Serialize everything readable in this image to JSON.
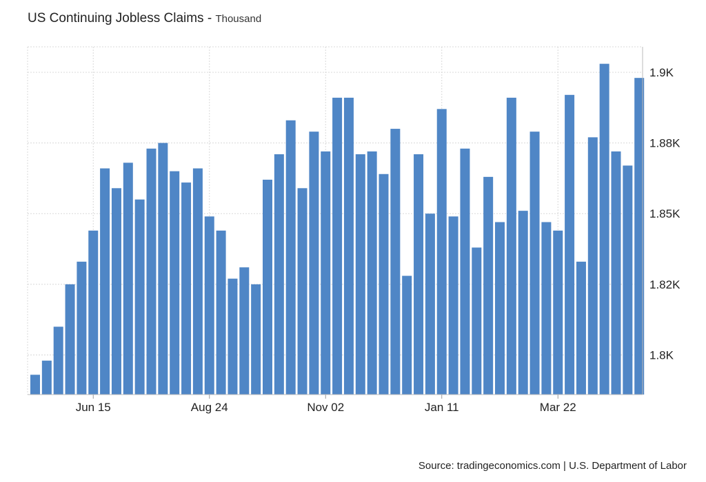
{
  "chart_data": {
    "type": "bar",
    "title": "US Continuing Jobless Claims",
    "unit_label": "Thousand",
    "source": "Source: tradingeconomics.com | U.S. Department of Labor",
    "color": "#4f86c6",
    "ylim": [
      1786,
      1909
    ],
    "yticks": [
      1800,
      1825,
      1850,
      1875,
      1900
    ],
    "ytick_labels": [
      "1.8K",
      "1.82K",
      "1.85K",
      "1.88K",
      "1.9K"
    ],
    "grid": true,
    "xtick_labels": [
      {
        "label": "Jun 15",
        "index": 5
      },
      {
        "label": "Aug 24",
        "index": 15
      },
      {
        "label": "Nov 02",
        "index": 25
      },
      {
        "label": "Jan 11",
        "index": 35
      },
      {
        "label": "Mar 22",
        "index": 45
      }
    ],
    "values": [
      1793,
      1798,
      1810,
      1825,
      1833,
      1844,
      1866,
      1859,
      1868,
      1855,
      1873,
      1875,
      1865,
      1861,
      1866,
      1849,
      1844,
      1827,
      1831,
      1825,
      1862,
      1871,
      1883,
      1859,
      1879,
      1872,
      1891,
      1891,
      1871,
      1872,
      1864,
      1880,
      1828,
      1871,
      1850,
      1887,
      1849,
      1873,
      1838,
      1863,
      1847,
      1891,
      1851,
      1879,
      1847,
      1844,
      1892,
      1833,
      1877,
      1903,
      1872,
      1867,
      1898
    ]
  }
}
